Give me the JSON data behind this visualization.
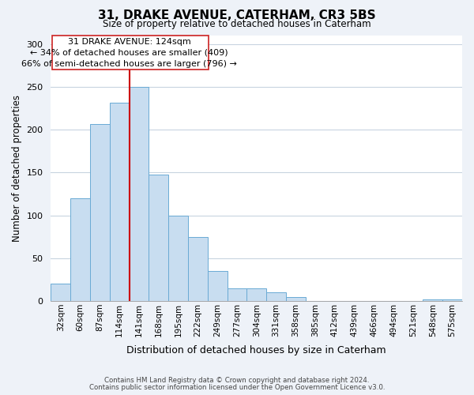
{
  "title": "31, DRAKE AVENUE, CATERHAM, CR3 5BS",
  "subtitle": "Size of property relative to detached houses in Caterham",
  "xlabel": "Distribution of detached houses by size in Caterham",
  "ylabel": "Number of detached properties",
  "bar_labels": [
    "32sqm",
    "60sqm",
    "87sqm",
    "114sqm",
    "141sqm",
    "168sqm",
    "195sqm",
    "222sqm",
    "249sqm",
    "277sqm",
    "304sqm",
    "331sqm",
    "358sqm",
    "385sqm",
    "412sqm",
    "439sqm",
    "466sqm",
    "494sqm",
    "521sqm",
    "548sqm",
    "575sqm"
  ],
  "bar_values": [
    20,
    120,
    207,
    232,
    250,
    148,
    100,
    75,
    35,
    15,
    15,
    10,
    5,
    0,
    0,
    0,
    0,
    0,
    0,
    2,
    2
  ],
  "bar_color": "#c8ddf0",
  "bar_edge_color": "#6aaad4",
  "vline_x_index": 3.5,
  "vline_color": "#cc0000",
  "ylim": [
    0,
    310
  ],
  "yticks": [
    0,
    50,
    100,
    150,
    200,
    250,
    300
  ],
  "annotation_line1": "31 DRAKE AVENUE: 124sqm",
  "annotation_line2": "← 34% of detached houses are smaller (409)",
  "annotation_line3": "66% of semi-detached houses are larger (796) →",
  "footer_line1": "Contains HM Land Registry data © Crown copyright and database right 2024.",
  "footer_line2": "Contains public sector information licensed under the Open Government Licence v3.0.",
  "background_color": "#eef2f8",
  "plot_bg_color": "#ffffff",
  "grid_color": "#c8d4e0"
}
